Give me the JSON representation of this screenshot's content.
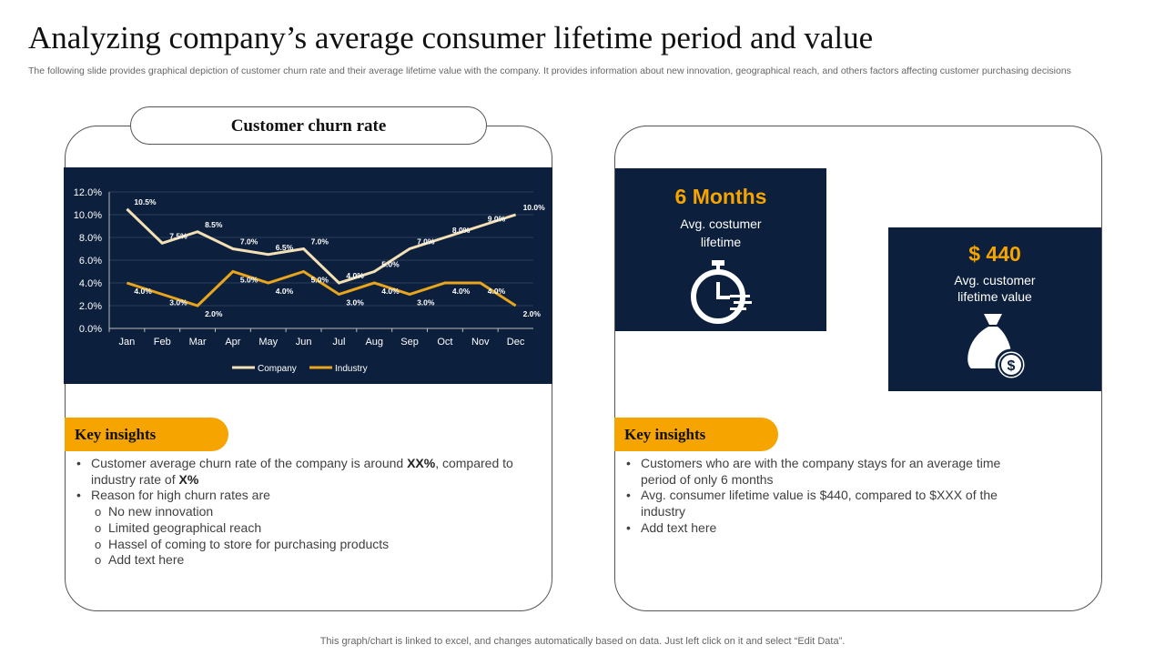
{
  "title": "Analyzing company’s average consumer lifetime period and value",
  "subtitle": "The following slide provides graphical depiction of customer churn rate and their average lifetime value with the company. It provides information about new innovation, geographical reach, and others factors affecting customer purchasing decisions",
  "left": {
    "heading": "Customer churn rate",
    "insights_label": "Key insights",
    "insights": [
      {
        "type": "bullet",
        "parts": [
          "Customer average churn rate of the company is around ",
          "XX%",
          ", compared to industry rate of ",
          "X%"
        ]
      },
      {
        "type": "bullet",
        "text": "Reason for high churn rates are"
      },
      {
        "type": "sub",
        "text": "No new innovation"
      },
      {
        "type": "sub",
        "text": "Limited geographical reach"
      },
      {
        "type": "sub",
        "text": "Hassel of coming to store for purchasing products"
      },
      {
        "type": "sub",
        "text": "Add text here"
      }
    ]
  },
  "right": {
    "stat1": {
      "value": "6 Months",
      "label": "Avg. costumer lifetime",
      "icon": "stopwatch-icon"
    },
    "stat2": {
      "value": "$ 440",
      "label": "Avg. customer lifetime value",
      "icon": "money-bag-icon"
    },
    "insights_label": "Key insights",
    "insights": [
      "Customers who are with the company stays for an average time period of only 6 months",
      "Avg. consumer lifetime value is $440, compared to $XXX of the industry",
      "Add text here"
    ]
  },
  "footer": "This graph/chart is linked to excel, and changes automatically based on data. Just left click on it and select “Edit Data”.",
  "chart_data": {
    "type": "line",
    "categories": [
      "Jan",
      "Feb",
      "Mar",
      "Apr",
      "May",
      "Jun",
      "Jul",
      "Aug",
      "Sep",
      "Oct",
      "Nov",
      "Dec"
    ],
    "series": [
      {
        "name": "Company",
        "values": [
          10.5,
          7.5,
          8.5,
          7.0,
          6.5,
          7.0,
          4.0,
          5.0,
          7.0,
          8.0,
          9.0,
          10.0
        ],
        "color": "#f3e0b5"
      },
      {
        "name": "Industry",
        "values": [
          4.0,
          3.0,
          2.0,
          5.0,
          4.0,
          5.0,
          3.0,
          4.0,
          3.0,
          4.0,
          4.0,
          2.0
        ],
        "color": "#e9a51c"
      }
    ],
    "yticks": [
      "0.0%",
      "2.0%",
      "4.0%",
      "6.0%",
      "8.0%",
      "10.0%",
      "12.0%"
    ],
    "ylim": [
      0,
      12
    ],
    "legend": "bottom",
    "background": "#0c1f3c"
  }
}
